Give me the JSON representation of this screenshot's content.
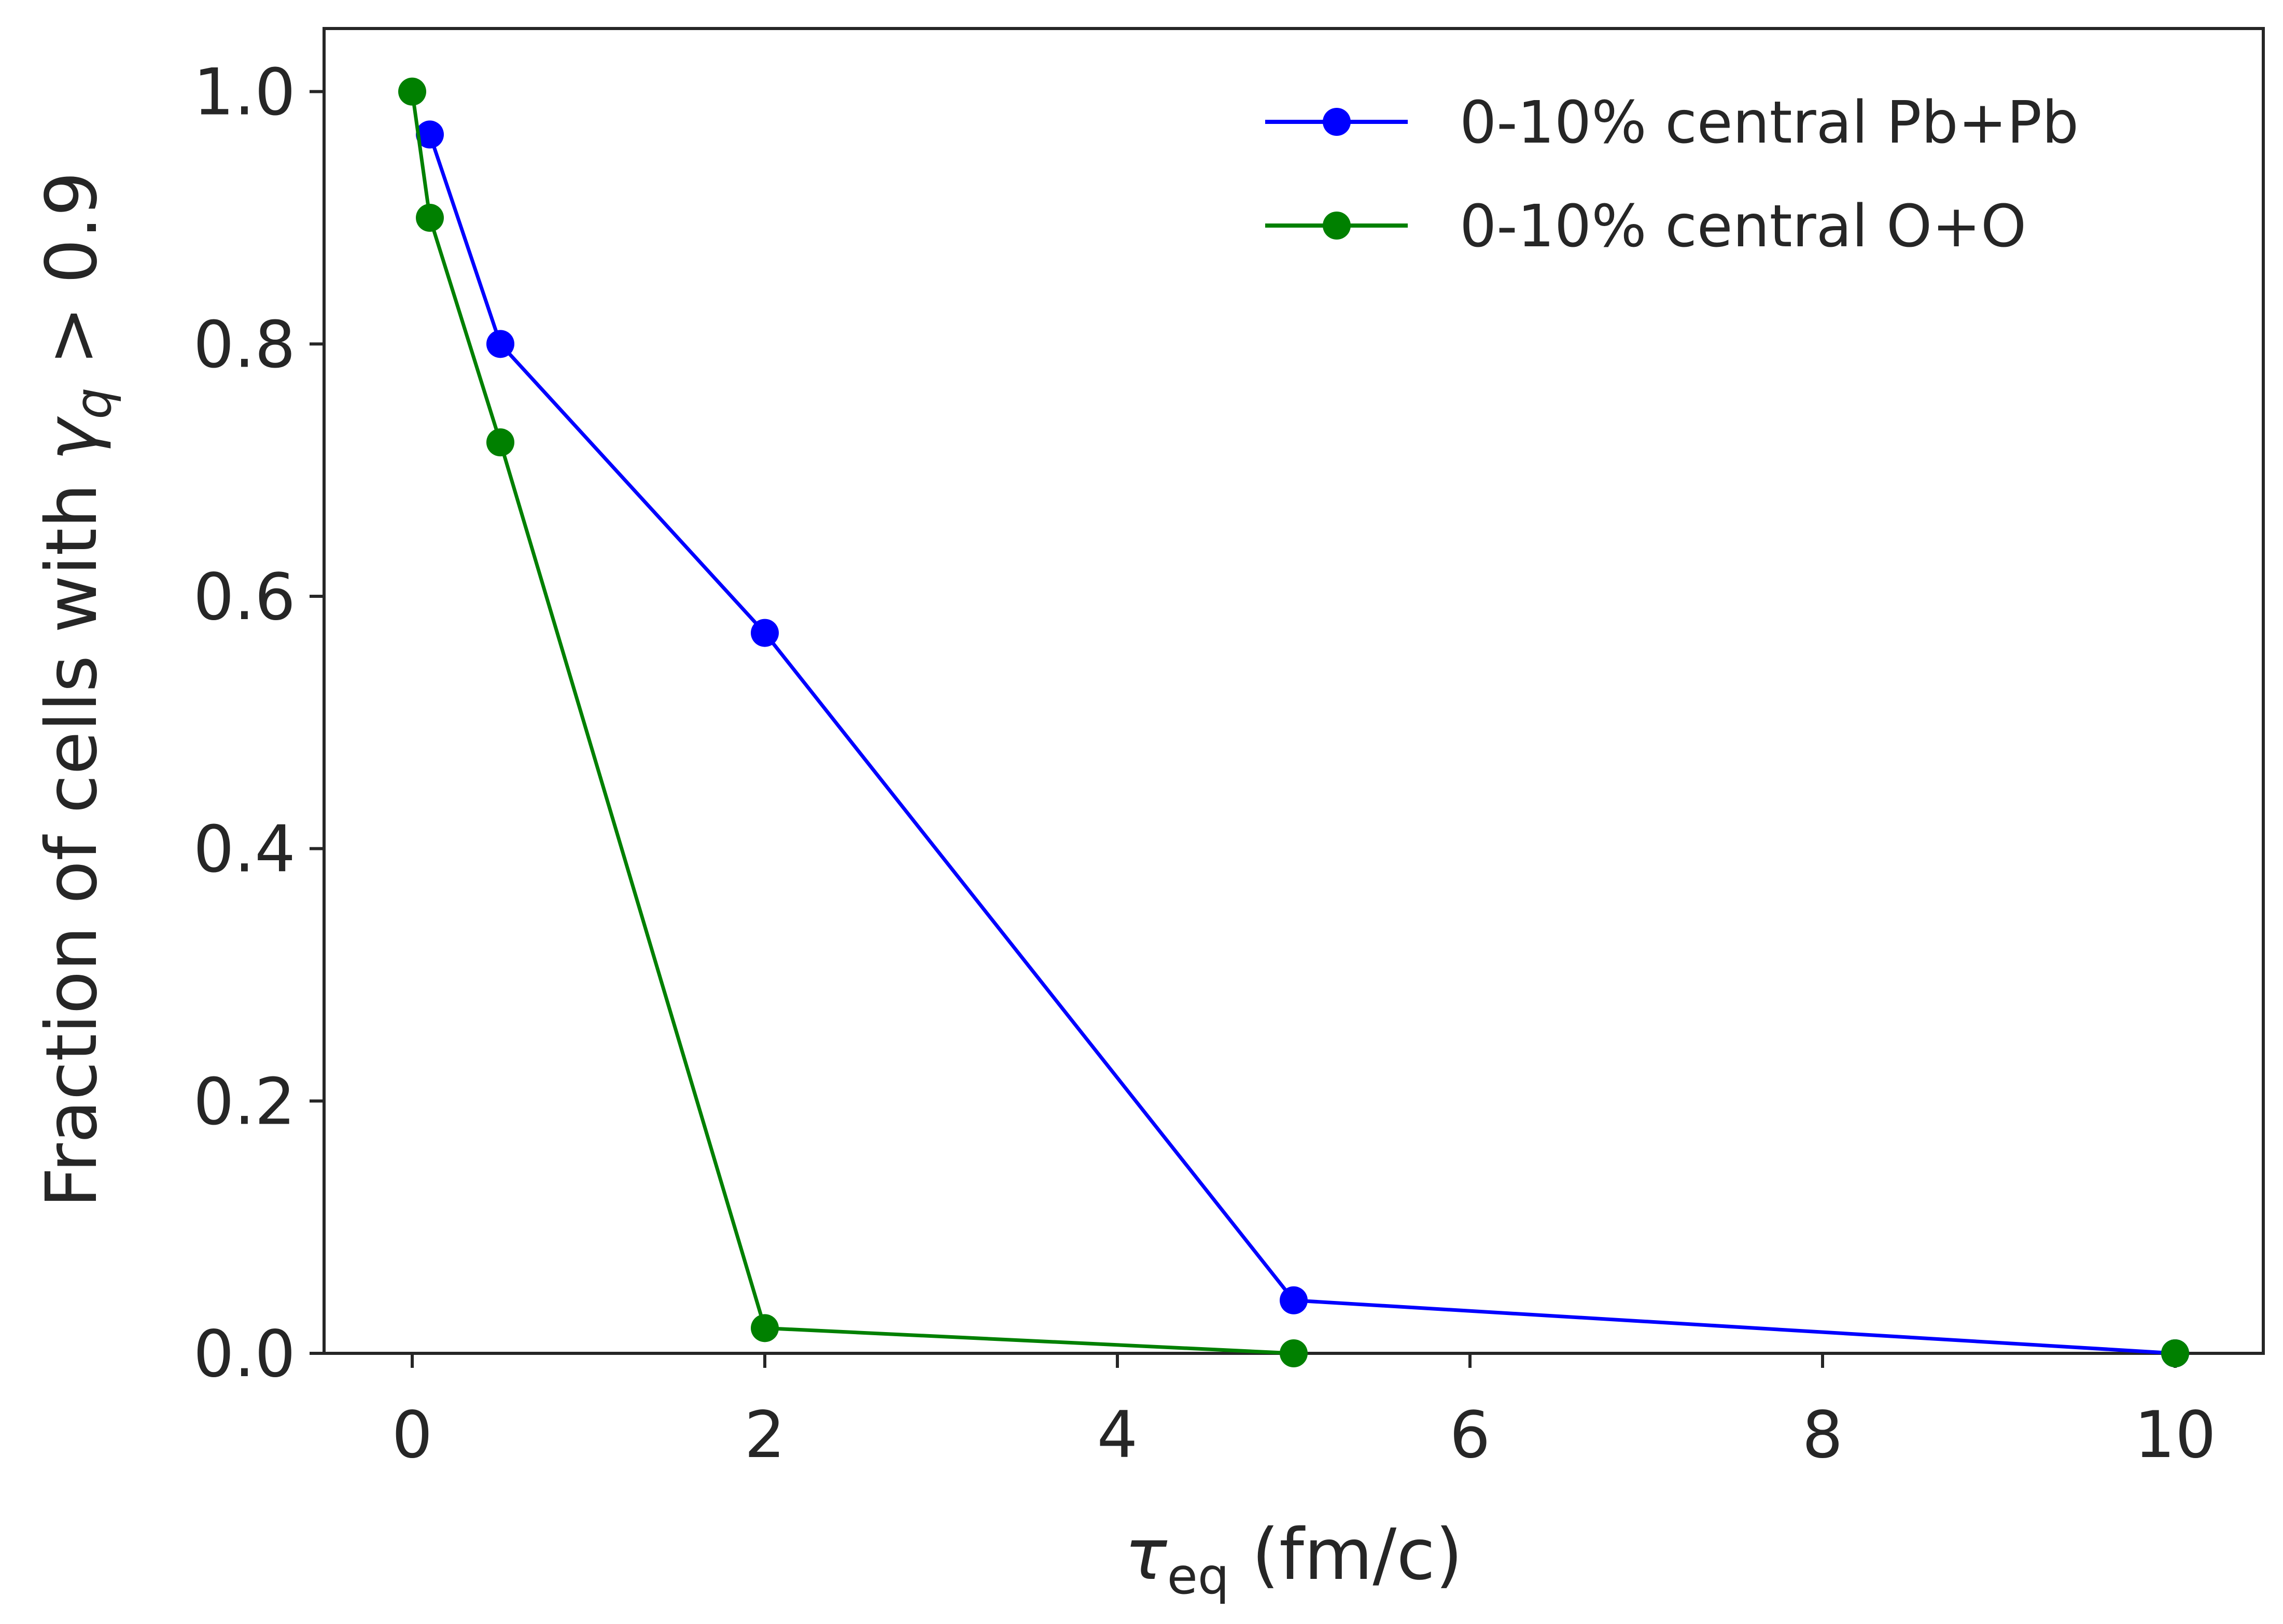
{
  "chart_data": {
    "type": "line",
    "title": "",
    "xlabel_symbol": "τ",
    "xlabel_subscript": "eq",
    "xlabel_units": " (fm/c)",
    "ylabel_text": "Fraction of cells with ",
    "ylabel_symbol": "γ",
    "ylabel_subscript": "q",
    "ylabel_suffix": " > 0.9",
    "xlim": [
      -0.5,
      10.5
    ],
    "ylim": [
      0.0,
      1.05
    ],
    "x_ticks": [
      "0",
      "2",
      "4",
      "6",
      "8",
      "10"
    ],
    "y_ticks": [
      "0.0",
      "0.2",
      "0.4",
      "0.6",
      "0.8",
      "1.0"
    ],
    "grid": false,
    "legend_position": "top-right",
    "series": [
      {
        "name": "0-10% central Pb+Pb",
        "color": "#0000ff",
        "x": [
          0.1,
          0.5,
          2,
          5,
          10
        ],
        "y": [
          0.966,
          0.8,
          0.571,
          0.042,
          0.0
        ]
      },
      {
        "name": "0-10% central O+O",
        "color": "#008000",
        "x": [
          0,
          0.1,
          0.5,
          2,
          5
        ],
        "y": [
          1.0,
          0.9,
          0.722,
          0.02,
          0.0
        ]
      }
    ],
    "extra_point": {
      "series": 1,
      "x": 10,
      "y": 0.0
    }
  }
}
